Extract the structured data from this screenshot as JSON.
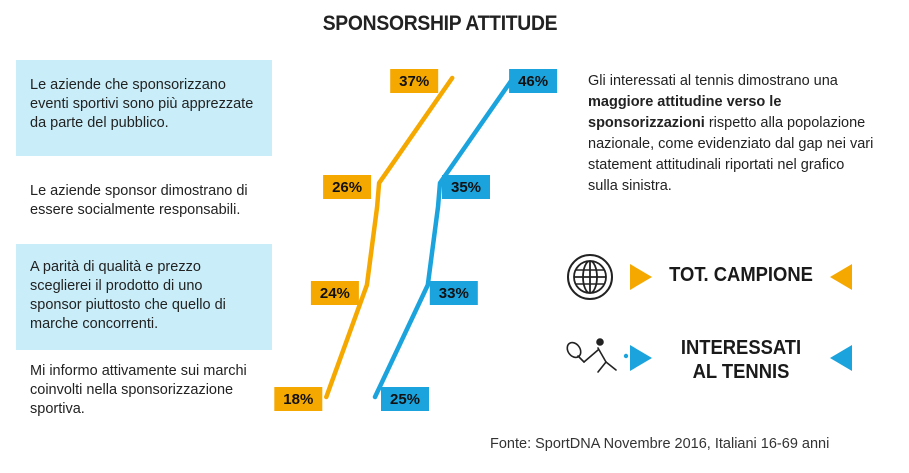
{
  "title": "SPONSORSHIP ATTITUDE",
  "statements": [
    "Le aziende che sponsorizzano eventi sportivi sono più apprezzate da parte del pubblico.",
    "Le aziende sponsor dimostrano di essere socialmente responsabili.",
    "A parità di qualità e prezzo sceglierei il prodotto di uno sponsor piuttosto che quello di marche concorrenti.",
    "Mi informo attivamente sui marchi coinvolti nella sponsorizzazione sportiva."
  ],
  "description": {
    "part1": "Gli interessati al tennis dimostrano una ",
    "bold": "maggiore attitudine verso le sponsorizzazioni",
    "part2": " rispetto alla popolazione nazionale, come evidenziato dal gap nei vari statement attitudinali riportati nel grafico sulla sinistra."
  },
  "legend": {
    "total_label": "TOT. CAMPIONE",
    "tennis_label_line1": "INTERESSATI",
    "tennis_label_line2": "AL TENNIS",
    "globe_icon": "globe-icon",
    "tennis_icon": "tennis-player-icon"
  },
  "colors": {
    "total": "#f5a800",
    "tennis": "#1aa3dd",
    "shade": "#c9eefa"
  },
  "source": "Fonte: SportDNA Novembre 2016, Italiani  16-69 anni",
  "chart_data": {
    "type": "line",
    "categories": [
      "Le aziende che sponsorizzano eventi sportivi sono più apprezzate da parte del pubblico.",
      "Le aziende sponsor dimostrano di essere socialmente responsabili.",
      "A parità di qualità e prezzo sceglierei il prodotto di uno sponsor piuttosto che quello di marche concorrenti.",
      "Mi informo attivamente sui marchi coinvolti nella sponsorizzazione sportiva."
    ],
    "series": [
      {
        "name": "TOT. CAMPIONE",
        "values": [
          37,
          26,
          24,
          18
        ],
        "labels": [
          "37%",
          "26%",
          "24%",
          "18%"
        ]
      },
      {
        "name": "INTERESSATI AL TENNIS",
        "values": [
          46,
          35,
          33,
          25
        ],
        "labels": [
          "46%",
          "35%",
          "33%",
          "25%"
        ]
      }
    ],
    "orientation": "vertical-categories",
    "grid": false
  }
}
